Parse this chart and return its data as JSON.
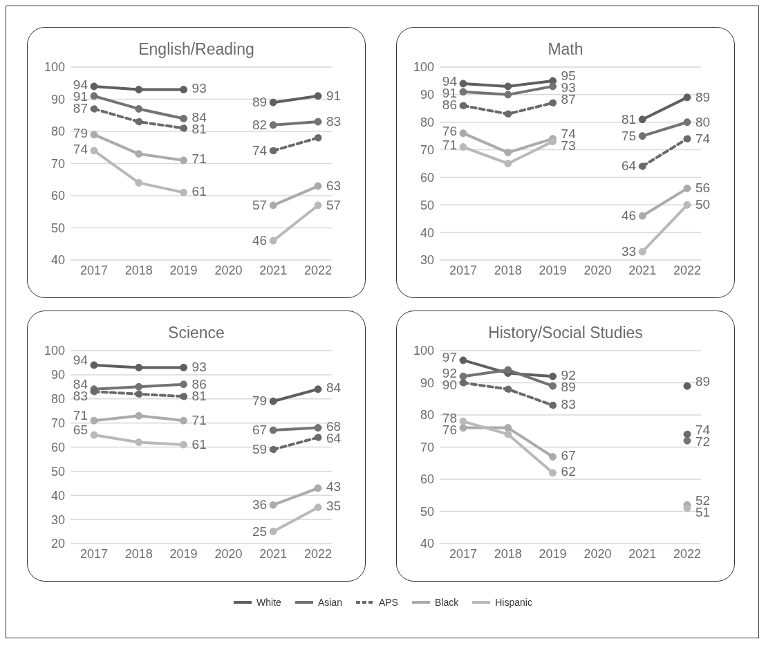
{
  "chart_data": [
    {
      "type": "line",
      "title": "English/Reading",
      "categories": [
        "2017",
        "2018",
        "2019",
        "2020",
        "2021",
        "2022"
      ],
      "ylim": [
        40,
        100
      ],
      "yticks": [
        40,
        50,
        60,
        70,
        80,
        90,
        100
      ],
      "grid": "y",
      "marker": "circle",
      "legend": "bottom",
      "series": [
        {
          "name": "White",
          "color": "#5f5f5f",
          "line_style": "solid",
          "values": [
            94,
            93,
            93,
            null,
            89,
            91
          ],
          "value_labels": [
            "94",
            null,
            "93",
            null,
            "89",
            "91"
          ]
        },
        {
          "name": "Asian",
          "color": "#737373",
          "line_style": "solid",
          "values": [
            91,
            87,
            84,
            null,
            82,
            83
          ],
          "value_labels": [
            "91",
            null,
            "84",
            null,
            "82",
            "83"
          ]
        },
        {
          "name": "APS",
          "color": "#6a6a6a",
          "line_style": "dashed",
          "values": [
            87,
            83,
            81,
            null,
            74,
            78
          ],
          "value_labels": [
            "87",
            null,
            "81",
            null,
            "74",
            null
          ]
        },
        {
          "name": "Black",
          "color": "#ababab",
          "line_style": "solid",
          "values": [
            79,
            73,
            71,
            null,
            57,
            63
          ],
          "value_labels": [
            "79",
            null,
            "71",
            null,
            "57",
            "63"
          ]
        },
        {
          "name": "Hispanic",
          "color": "#b9b9b9",
          "line_style": "solid",
          "values": [
            74,
            64,
            61,
            null,
            46,
            57
          ],
          "value_labels": [
            "74",
            null,
            "61",
            null,
            "46",
            "57"
          ]
        }
      ]
    },
    {
      "type": "line",
      "title": "Math",
      "categories": [
        "2017",
        "2018",
        "2019",
        "2020",
        "2021",
        "2022"
      ],
      "ylim": [
        30,
        100
      ],
      "yticks": [
        30,
        40,
        50,
        60,
        70,
        80,
        90,
        100
      ],
      "grid": "y",
      "marker": "circle",
      "series": [
        {
          "color": "#5f5f5f",
          "line_style": "solid",
          "values": [
            94,
            93,
            95,
            null,
            81,
            89
          ],
          "value_labels": [
            "94",
            null,
            "95",
            null,
            "81",
            "89"
          ]
        },
        {
          "color": "#737373",
          "line_style": "solid",
          "values": [
            91,
            90,
            93,
            null,
            75,
            80
          ],
          "value_labels": [
            "91",
            null,
            "93",
            null,
            "75",
            "80"
          ]
        },
        {
          "color": "#6a6a6a",
          "line_style": "dashed",
          "values": [
            86,
            83,
            87,
            null,
            64,
            74
          ],
          "value_labels": [
            "86",
            null,
            "87",
            null,
            "64",
            "74"
          ]
        },
        {
          "color": "#ababab",
          "line_style": "solid",
          "values": [
            76,
            69,
            74,
            null,
            46,
            56
          ],
          "value_labels": [
            "76",
            null,
            "74",
            null,
            "46",
            "56"
          ]
        },
        {
          "color": "#b9b9b9",
          "line_style": "solid",
          "values": [
            71,
            65,
            73,
            null,
            33,
            50
          ],
          "value_labels": [
            "71",
            null,
            "73",
            null,
            "33",
            "50"
          ]
        }
      ]
    },
    {
      "type": "line",
      "title": "Science",
      "categories": [
        "2017",
        "2018",
        "2019",
        "2020",
        "2021",
        "2022"
      ],
      "ylim": [
        20,
        100
      ],
      "yticks": [
        20,
        30,
        40,
        50,
        60,
        70,
        80,
        90,
        100
      ],
      "grid": "y",
      "marker": "circle",
      "series": [
        {
          "color": "#5f5f5f",
          "line_style": "solid",
          "values": [
            94,
            93,
            93,
            null,
            79,
            84
          ],
          "value_labels": [
            "94",
            null,
            "93",
            null,
            "79",
            "84"
          ]
        },
        {
          "color": "#737373",
          "line_style": "solid",
          "values": [
            84,
            85,
            86,
            null,
            67,
            68
          ],
          "value_labels": [
            "84",
            null,
            "86",
            null,
            "67",
            "68"
          ]
        },
        {
          "color": "#6a6a6a",
          "line_style": "dashed",
          "values": [
            83,
            82,
            81,
            null,
            59,
            64
          ],
          "value_labels": [
            "83",
            null,
            "81",
            null,
            "59",
            "64"
          ]
        },
        {
          "color": "#ababab",
          "line_style": "solid",
          "values": [
            71,
            73,
            71,
            null,
            36,
            43
          ],
          "value_labels": [
            "71",
            null,
            "71",
            null,
            "36",
            "43"
          ]
        },
        {
          "color": "#b9b9b9",
          "line_style": "solid",
          "values": [
            65,
            62,
            61,
            null,
            25,
            35
          ],
          "value_labels": [
            "65",
            null,
            "61",
            null,
            "25",
            "35"
          ]
        }
      ]
    },
    {
      "type": "line",
      "title": "History/Social Studies",
      "categories": [
        "2017",
        "2018",
        "2019",
        "2020",
        "2021",
        "2022"
      ],
      "ylim": [
        40,
        100
      ],
      "yticks": [
        40,
        50,
        60,
        70,
        80,
        90,
        100
      ],
      "grid": "y",
      "marker": "circle",
      "series": [
        {
          "color": "#5f5f5f",
          "line_style": "solid",
          "values": [
            97,
            93,
            92,
            null,
            null,
            89
          ],
          "value_labels": [
            "97",
            null,
            "92",
            null,
            null,
            "89"
          ]
        },
        {
          "color": "#737373",
          "line_style": "solid",
          "values": [
            92,
            94,
            89,
            null,
            null,
            72
          ],
          "value_labels": [
            "92",
            null,
            "89",
            null,
            null,
            "72"
          ]
        },
        {
          "color": "#6a6a6a",
          "line_style": "dashed",
          "values": [
            90,
            88,
            83,
            null,
            null,
            74
          ],
          "value_labels": [
            "90",
            null,
            "83",
            null,
            null,
            "74"
          ]
        },
        {
          "color": "#ababab",
          "line_style": "solid",
          "values": [
            76,
            76,
            67,
            null,
            null,
            52
          ],
          "value_labels": [
            "76",
            null,
            "67",
            null,
            null,
            "52"
          ]
        },
        {
          "color": "#b9b9b9",
          "line_style": "solid",
          "values": [
            78,
            74,
            62,
            null,
            null,
            51
          ],
          "value_labels": [
            "78",
            null,
            "62",
            null,
            null,
            "51"
          ]
        }
      ]
    }
  ]
}
